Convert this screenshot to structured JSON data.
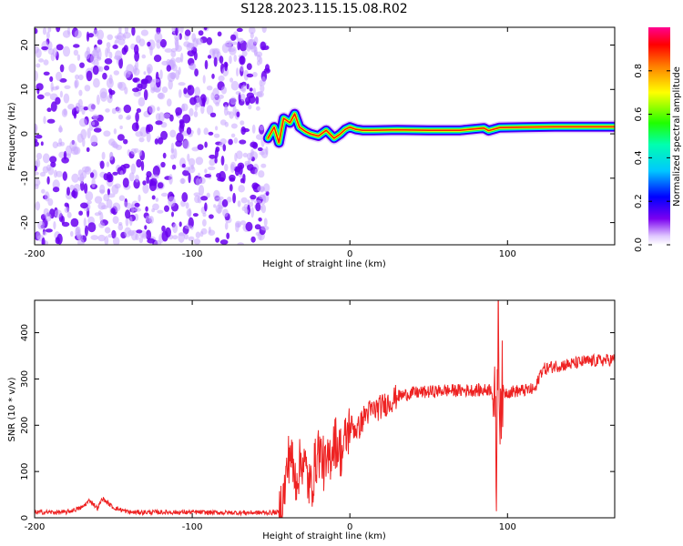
{
  "title": "S128.2023.115.15.08.R02",
  "colors": {
    "snr_line": "#ee2222",
    "frame": "#000000",
    "noise_dark": "#6a00f0",
    "noise_light": "#c9a8ff"
  },
  "chart_data": [
    {
      "type": "heatmap",
      "name": "spectrogram",
      "xlabel": "Height of straight line (km)",
      "ylabel": "Frequency (Hz)",
      "xlim": [
        -200,
        168
      ],
      "ylim": [
        -25,
        24
      ],
      "x_ticks": [
        -200,
        -100,
        0,
        100
      ],
      "x_tick_labels": [
        "-200",
        "-100",
        "0",
        "100"
      ],
      "y_ticks": [
        -20,
        -10,
        0,
        10,
        20
      ],
      "y_tick_labels": [
        "-20",
        "-10",
        "0",
        "10",
        "20"
      ],
      "grid": false,
      "noise_region_x": [
        -200,
        -52
      ],
      "ridge_x": [
        -52,
        -48,
        -45,
        -42,
        -38,
        -35,
        -32,
        -28,
        -25,
        -20,
        -15,
        -10,
        -6,
        -3,
        0,
        4,
        8,
        15,
        30,
        50,
        70,
        85,
        88,
        95,
        110,
        130,
        150,
        168
      ],
      "ridge_y": [
        -1.0,
        1.5,
        -2.0,
        3.5,
        2.5,
        4.5,
        1.5,
        0.5,
        0.0,
        -0.5,
        0.8,
        -1.0,
        0.0,
        1.0,
        1.5,
        1.0,
        0.8,
        0.8,
        0.9,
        0.8,
        0.8,
        1.3,
        0.7,
        1.4,
        1.5,
        1.6,
        1.6,
        1.6
      ],
      "colorbar": {
        "label": "Normalized spectral amplitude",
        "range": [
          0,
          1
        ],
        "ticks": [
          0.0,
          0.2,
          0.4,
          0.6,
          0.8
        ],
        "tick_labels": [
          "0.0",
          "0.2",
          "0.4",
          "0.6",
          "0.8"
        ]
      }
    },
    {
      "type": "line",
      "name": "snr",
      "xlabel": "Height of straight line (km)",
      "ylabel": "SNR (10 * v/v)",
      "xlim": [
        -200,
        168
      ],
      "ylim": [
        0,
        470
      ],
      "x_ticks": [
        -200,
        -100,
        0,
        100
      ],
      "x_tick_labels": [
        "-200",
        "-100",
        "0",
        "100"
      ],
      "y_ticks": [
        0,
        100,
        200,
        300,
        400
      ],
      "y_tick_labels": [
        "0",
        "100",
        "200",
        "300",
        "400"
      ],
      "grid": false,
      "series": [
        {
          "x": [
            -200,
            -180,
            -170,
            -165,
            -160,
            -157,
            -150,
            -140,
            -120,
            -100,
            -80,
            -60,
            -50,
            -45,
            -42,
            -38,
            -35,
            -30,
            -25,
            -20,
            -15,
            -10,
            -5,
            0,
            5,
            10,
            20,
            30,
            40,
            50,
            60,
            70,
            80,
            85,
            90,
            92,
            93,
            94,
            95,
            96,
            98,
            100,
            110,
            118,
            120,
            122,
            130,
            140,
            150,
            160,
            168
          ],
          "y": [
            12,
            12,
            22,
            38,
            20,
            42,
            22,
            12,
            12,
            12,
            11,
            11,
            11,
            12,
            45,
            150,
            80,
            130,
            60,
            150,
            100,
            170,
            140,
            200,
            190,
            225,
            240,
            262,
            270,
            272,
            275,
            275,
            276,
            275,
            280,
            220,
            80,
            440,
            250,
            280,
            270,
            272,
            275,
            278,
            305,
            320,
            328,
            332,
            338,
            340,
            342
          ]
        }
      ]
    }
  ]
}
